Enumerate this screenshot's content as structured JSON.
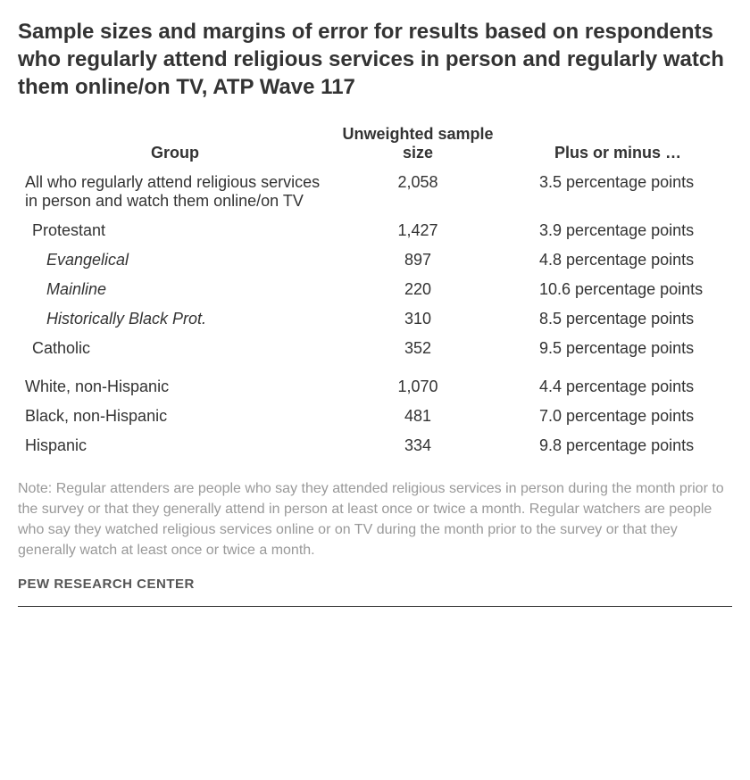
{
  "title": "Sample sizes and margins of error for results based on respondents who regularly attend religious services in person and regularly watch them online/on TV, ATP Wave 117",
  "columns": {
    "group": "Group",
    "sample": "Unweighted sample size",
    "moe": "Plus or minus …"
  },
  "rows": [
    {
      "label": "All who regularly attend religious services in person and watch them online/on TV",
      "sample": "2,058",
      "moe": "3.5 percentage points",
      "indent": 0,
      "italic": false
    },
    {
      "label": "Protestant",
      "sample": "1,427",
      "moe": "3.9 percentage points",
      "indent": 1,
      "italic": false
    },
    {
      "label": "Evangelical",
      "sample": "897",
      "moe": "4.8 percentage points",
      "indent": 2,
      "italic": true
    },
    {
      "label": "Mainline",
      "sample": "220",
      "moe": "10.6 percentage points",
      "indent": 2,
      "italic": true
    },
    {
      "label": "Historically Black Prot.",
      "sample": "310",
      "moe": "8.5 percentage points",
      "indent": 2,
      "italic": true
    },
    {
      "label": "Catholic",
      "sample": "352",
      "moe": "9.5 percentage points",
      "indent": 1,
      "italic": false
    }
  ],
  "rows2": [
    {
      "label": "White, non-Hispanic",
      "sample": "1,070",
      "moe": "4.4 percentage points",
      "indent": 0
    },
    {
      "label": "Black, non-Hispanic",
      "sample": "481",
      "moe": "7.0 percentage points",
      "indent": 0
    },
    {
      "label": "Hispanic",
      "sample": "334",
      "moe": "9.8 percentage points",
      "indent": 0
    }
  ],
  "note": "Note: Regular attenders are people who say they attended religious services in person during the month prior to the survey or that they generally attend in person at least once or twice a month. Regular watchers are people who say they watched religious services online or on TV during the month prior to the survey or that they generally watch at least once or twice a month.",
  "source": "PEW RESEARCH CENTER",
  "colors": {
    "text": "#333333",
    "note": "#999999",
    "background": "#ffffff"
  }
}
